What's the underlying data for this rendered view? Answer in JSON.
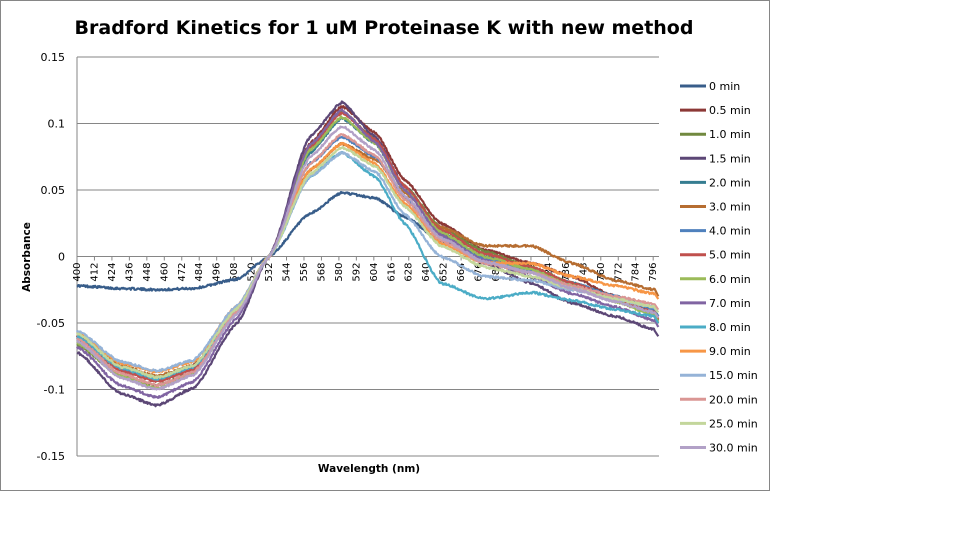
{
  "chart_data": {
    "type": "line",
    "title": "Bradford Kinetics for 1 uM Proteinase K with new method",
    "xlabel": "Wavelength (nm)",
    "ylabel": "Absorbance",
    "xlim": [
      400,
      800
    ],
    "ylim": [
      -0.15,
      0.15
    ],
    "grid": true,
    "legend_position": "right",
    "y_ticks": [
      "0.15",
      "0.1",
      "0.05",
      "0",
      "-0.05",
      "-0.1",
      "-0.15"
    ],
    "y_tick_values": [
      0.15,
      0.1,
      0.05,
      0,
      -0.05,
      -0.1,
      -0.15
    ],
    "x_ticks": [
      "400",
      "412",
      "424",
      "436",
      "448",
      "460",
      "472",
      "484",
      "496",
      "508",
      "520",
      "532",
      "544",
      "556",
      "568",
      "580",
      "592",
      "604",
      "616",
      "628",
      "640",
      "652",
      "664",
      "676",
      "688",
      "700",
      "712",
      "724",
      "736",
      "748",
      "760",
      "772",
      "784",
      "796"
    ],
    "x": [
      400,
      430,
      455,
      480,
      510,
      532,
      560,
      582,
      605,
      625,
      650,
      680,
      712,
      740,
      770,
      797,
      799
    ],
    "series": [
      {
        "name": "0 min",
        "color": "#385d8a",
        "values": [
          -0.022,
          -0.024,
          -0.025,
          -0.024,
          -0.017,
          0.0,
          0.032,
          0.048,
          0.044,
          0.03,
          0.012,
          0.0,
          -0.01,
          -0.02,
          -0.03,
          -0.04,
          -0.045
        ]
      },
      {
        "name": "0.5 min",
        "color": "#8c3836",
        "values": [
          -0.06,
          -0.083,
          -0.091,
          -0.082,
          -0.04,
          0.0,
          0.085,
          0.113,
          0.093,
          0.058,
          0.025,
          0.005,
          -0.005,
          -0.015,
          -0.03,
          -0.04,
          -0.045
        ]
      },
      {
        "name": "1.0 min",
        "color": "#71893f",
        "values": [
          -0.066,
          -0.09,
          -0.097,
          -0.087,
          -0.042,
          0.0,
          0.082,
          0.109,
          0.088,
          0.053,
          0.022,
          0.004,
          -0.008,
          -0.02,
          -0.033,
          -0.043,
          -0.048
        ]
      },
      {
        "name": "1.5 min",
        "color": "#5c4776",
        "values": [
          -0.072,
          -0.103,
          -0.112,
          -0.099,
          -0.05,
          0.0,
          0.09,
          0.116,
          0.09,
          0.053,
          0.018,
          -0.005,
          -0.02,
          -0.035,
          -0.045,
          -0.055,
          -0.06
        ]
      },
      {
        "name": "2.0 min",
        "color": "#357d91",
        "values": [
          -0.062,
          -0.085,
          -0.093,
          -0.084,
          -0.04,
          0.0,
          0.078,
          0.104,
          0.085,
          0.05,
          0.018,
          0.0,
          -0.01,
          -0.02,
          -0.03,
          -0.04,
          -0.045
        ]
      },
      {
        "name": "3.0 min",
        "color": "#b66d31",
        "values": [
          -0.058,
          -0.082,
          -0.09,
          -0.082,
          -0.038,
          0.0,
          0.065,
          0.085,
          0.073,
          0.048,
          0.022,
          0.008,
          0.008,
          -0.005,
          -0.018,
          -0.025,
          -0.03
        ]
      },
      {
        "name": "4.0 min",
        "color": "#4f81bd",
        "values": [
          -0.06,
          -0.085,
          -0.093,
          -0.085,
          -0.04,
          0.0,
          0.07,
          0.09,
          0.075,
          0.045,
          0.015,
          -0.002,
          -0.01,
          -0.02,
          -0.03,
          -0.04,
          -0.045
        ]
      },
      {
        "name": "5.0 min",
        "color": "#c0504d",
        "values": [
          -0.06,
          -0.086,
          -0.094,
          -0.085,
          -0.04,
          0.0,
          0.082,
          0.108,
          0.088,
          0.053,
          0.02,
          0.002,
          -0.008,
          -0.02,
          -0.032,
          -0.042,
          -0.047
        ]
      },
      {
        "name": "6.0 min",
        "color": "#9bbb59",
        "values": [
          -0.065,
          -0.09,
          -0.099,
          -0.088,
          -0.042,
          0.0,
          0.08,
          0.105,
          0.085,
          0.05,
          0.018,
          0.0,
          -0.01,
          -0.022,
          -0.034,
          -0.044,
          -0.049
        ]
      },
      {
        "name": "7.0 min",
        "color": "#8064a2",
        "values": [
          -0.068,
          -0.097,
          -0.106,
          -0.094,
          -0.046,
          0.0,
          0.084,
          0.11,
          0.086,
          0.05,
          0.016,
          -0.003,
          -0.015,
          -0.028,
          -0.038,
          -0.048,
          -0.053
        ]
      },
      {
        "name": "8.0 min",
        "color": "#4bacc6",
        "values": [
          -0.06,
          -0.084,
          -0.092,
          -0.083,
          -0.04,
          0.0,
          0.06,
          0.078,
          0.06,
          0.025,
          -0.02,
          -0.032,
          -0.027,
          -0.033,
          -0.04,
          -0.045,
          -0.05
        ]
      },
      {
        "name": "9.0 min",
        "color": "#f79646",
        "values": [
          -0.057,
          -0.08,
          -0.087,
          -0.079,
          -0.037,
          0.0,
          0.065,
          0.085,
          0.07,
          0.04,
          0.01,
          -0.005,
          -0.005,
          -0.015,
          -0.022,
          -0.028,
          -0.032
        ]
      },
      {
        "name": "15.0 min",
        "color": "#95b3d7",
        "values": [
          -0.056,
          -0.079,
          -0.086,
          -0.078,
          -0.037,
          0.0,
          0.06,
          0.078,
          0.064,
          0.032,
          0.0,
          -0.015,
          -0.018,
          -0.025,
          -0.032,
          -0.038,
          -0.042
        ]
      },
      {
        "name": "20.0 min",
        "color": "#da9694",
        "values": [
          -0.062,
          -0.088,
          -0.097,
          -0.087,
          -0.041,
          0.0,
          0.07,
          0.092,
          0.076,
          0.043,
          0.012,
          -0.005,
          -0.012,
          -0.022,
          -0.03,
          -0.036,
          -0.04
        ]
      },
      {
        "name": "25.0 min",
        "color": "#c3d69b",
        "values": [
          -0.058,
          -0.083,
          -0.091,
          -0.082,
          -0.039,
          0.0,
          0.062,
          0.082,
          0.068,
          0.038,
          0.008,
          -0.008,
          -0.015,
          -0.024,
          -0.032,
          -0.038,
          -0.042
        ]
      },
      {
        "name": "30.0 min",
        "color": "#b2a1c7",
        "values": [
          -0.064,
          -0.091,
          -0.1,
          -0.089,
          -0.043,
          0.0,
          0.075,
          0.098,
          0.08,
          0.046,
          0.014,
          -0.004,
          -0.012,
          -0.024,
          -0.034,
          -0.042,
          -0.046
        ]
      }
    ]
  }
}
